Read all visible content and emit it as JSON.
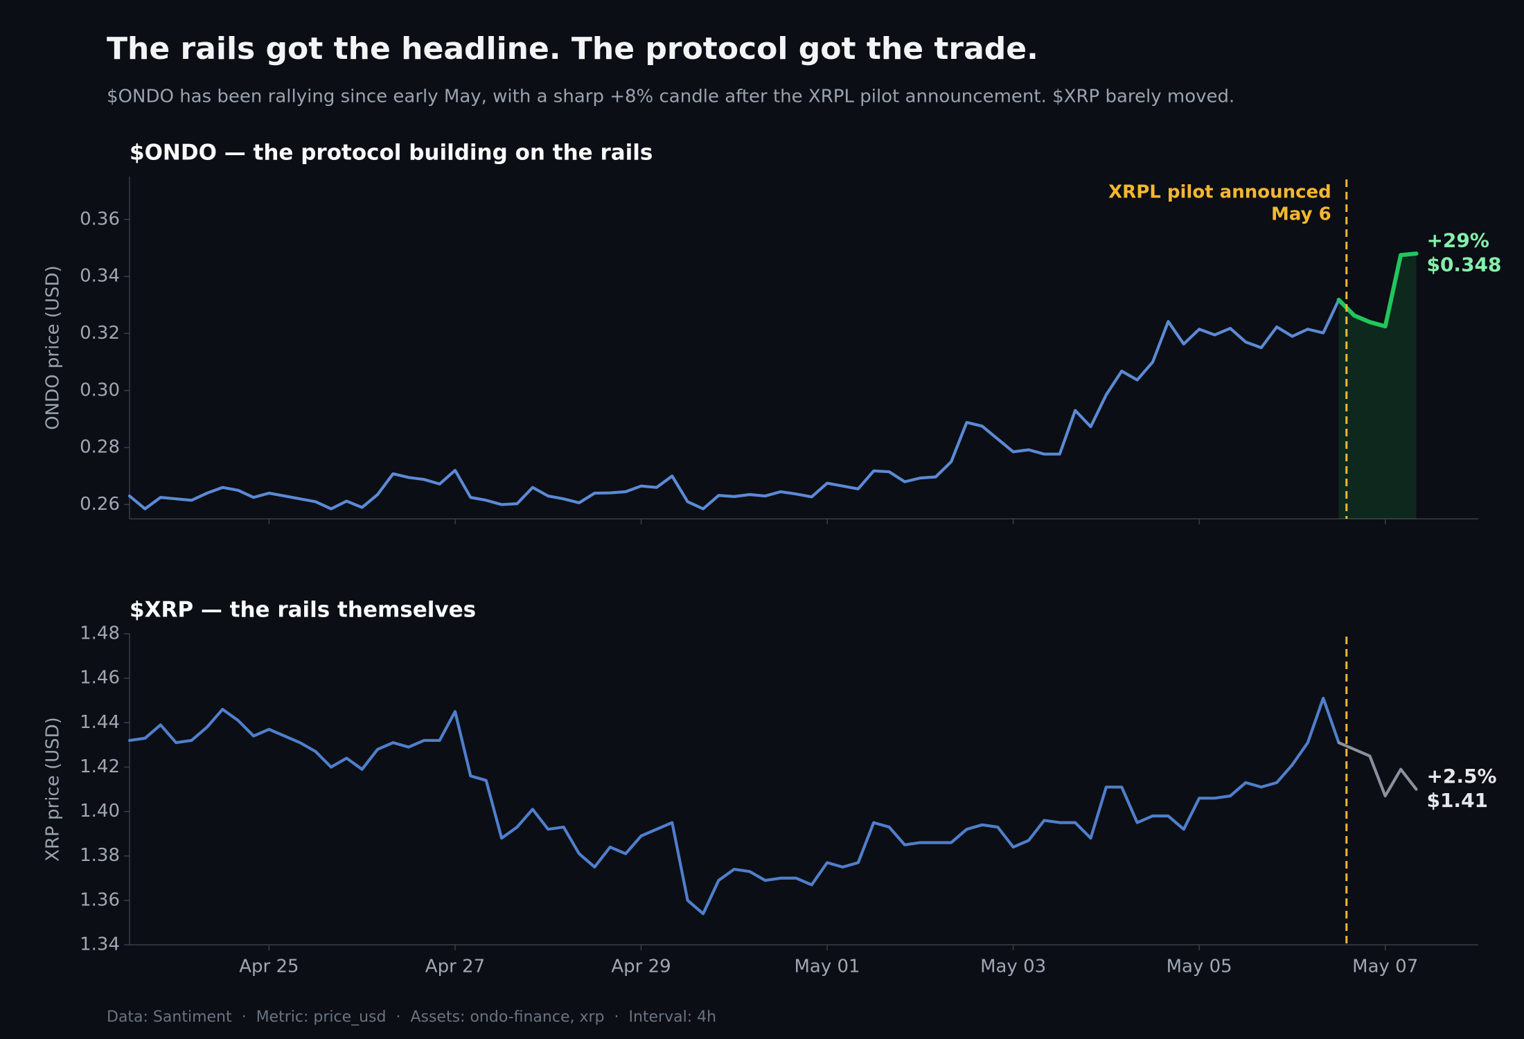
{
  "title": "The rails got the headline. The protocol got the trade.",
  "subtitle": "$ONDO has been rallying since early May, with a sharp +8% candle after the XRPL pilot announcement. $XRP barely moved.",
  "footer": "Data: Santiment  ·  Metric: price_usd  ·  Assets: ondo-finance, xrp  ·  Interval: 4h",
  "chart_data": [
    {
      "type": "line",
      "title": "$ONDO — the protocol building on the rails",
      "y_label": "ONDO price (USD)",
      "x": [
        "04-23 12:00",
        "04-23 16:00",
        "04-23 20:00",
        "04-24 00:00",
        "04-24 04:00",
        "04-24 08:00",
        "04-24 12:00",
        "04-24 16:00",
        "04-24 20:00",
        "04-25 00:00",
        "04-25 04:00",
        "04-25 08:00",
        "04-25 12:00",
        "04-25 16:00",
        "04-25 20:00",
        "04-26 00:00",
        "04-26 04:00",
        "04-26 08:00",
        "04-26 12:00",
        "04-26 16:00",
        "04-26 20:00",
        "04-27 00:00",
        "04-27 04:00",
        "04-27 08:00",
        "04-27 12:00",
        "04-27 16:00",
        "04-27 20:00",
        "04-28 00:00",
        "04-28 04:00",
        "04-28 08:00",
        "04-28 12:00",
        "04-28 16:00",
        "04-28 20:00",
        "04-29 00:00",
        "04-29 04:00",
        "04-29 08:00",
        "04-29 12:00",
        "04-29 16:00",
        "04-29 20:00",
        "04-30 00:00",
        "04-30 04:00",
        "04-30 08:00",
        "04-30 12:00",
        "04-30 16:00",
        "04-30 20:00",
        "05-01 00:00",
        "05-01 04:00",
        "05-01 08:00",
        "05-01 12:00",
        "05-01 16:00",
        "05-01 20:00",
        "05-02 00:00",
        "05-02 04:00",
        "05-02 08:00",
        "05-02 12:00",
        "05-02 16:00",
        "05-02 20:00",
        "05-03 00:00",
        "05-03 04:00",
        "05-03 08:00",
        "05-03 12:00",
        "05-03 16:00",
        "05-03 20:00",
        "05-04 00:00",
        "05-04 04:00",
        "05-04 08:00",
        "05-04 12:00",
        "05-04 16:00",
        "05-04 20:00",
        "05-05 00:00",
        "05-05 04:00",
        "05-05 08:00",
        "05-05 12:00",
        "05-05 16:00",
        "05-05 20:00",
        "05-06 00:00",
        "05-06 04:00",
        "05-06 08:00",
        "05-06 12:00",
        "05-06 16:00",
        "05-06 20:00",
        "05-07 00:00",
        "05-07 04:00",
        "05-07 08:00"
      ],
      "values": [
        0.263,
        0.2585,
        0.2625,
        0.262,
        0.2615,
        0.264,
        0.266,
        0.265,
        0.2625,
        0.264,
        0.263,
        0.262,
        0.261,
        0.2585,
        0.2612,
        0.259,
        0.2635,
        0.2708,
        0.2695,
        0.2688,
        0.2672,
        0.272,
        0.2625,
        0.2615,
        0.26,
        0.2603,
        0.266,
        0.263,
        0.262,
        0.2606,
        0.264,
        0.2641,
        0.2645,
        0.2665,
        0.266,
        0.27,
        0.261,
        0.2585,
        0.2632,
        0.2628,
        0.2635,
        0.263,
        0.2645,
        0.2637,
        0.2627,
        0.2675,
        0.2665,
        0.2655,
        0.2718,
        0.2715,
        0.268,
        0.2693,
        0.2697,
        0.275,
        0.2888,
        0.2875,
        0.283,
        0.2785,
        0.2792,
        0.2777,
        0.2777,
        0.293,
        0.2873,
        0.2985,
        0.3068,
        0.3037,
        0.31,
        0.3242,
        0.3163,
        0.3215,
        0.3195,
        0.3218,
        0.317,
        0.315,
        0.3223,
        0.319,
        0.3215,
        0.3202,
        0.3318,
        0.3263,
        0.324,
        0.3225,
        0.3475,
        0.348
      ],
      "color": "#5b8ad6",
      "highlight_from": "05-06 12:00",
      "highlight_color": "#22c55e",
      "highlight_area": true,
      "xlim": [
        "04-23 12:00",
        "05-08 00:00"
      ],
      "xticks": [
        "04-25",
        "04-27",
        "04-29",
        "05-01",
        "05-03",
        "05-05",
        "05-07"
      ],
      "ylim": [
        0.255,
        0.375
      ],
      "yticks": [
        0.26,
        0.28,
        {
          "value": 0.3,
          "label": "0.30"
        },
        0.32,
        0.34,
        0.36
      ],
      "vline": {
        "x": "05-06 14:00",
        "color": "#f5b731",
        "text": [
          "XRPL pilot announced",
          "May 6"
        ]
      },
      "end_labels": [
        "+29%",
        "$0.348"
      ],
      "end_label_color": "#86efac"
    },
    {
      "type": "line",
      "title": "$XRP — the rails themselves",
      "y_label": "XRP price (USD)",
      "x": [
        "04-23 12:00",
        "04-23 16:00",
        "04-23 20:00",
        "04-24 00:00",
        "04-24 04:00",
        "04-24 08:00",
        "04-24 12:00",
        "04-24 16:00",
        "04-24 20:00",
        "04-25 00:00",
        "04-25 04:00",
        "04-25 08:00",
        "04-25 12:00",
        "04-25 16:00",
        "04-25 20:00",
        "04-26 00:00",
        "04-26 04:00",
        "04-26 08:00",
        "04-26 12:00",
        "04-26 16:00",
        "04-26 20:00",
        "04-27 00:00",
        "04-27 04:00",
        "04-27 08:00",
        "04-27 12:00",
        "04-27 16:00",
        "04-27 20:00",
        "04-28 00:00",
        "04-28 04:00",
        "04-28 08:00",
        "04-28 12:00",
        "04-28 16:00",
        "04-28 20:00",
        "04-29 00:00",
        "04-29 04:00",
        "04-29 08:00",
        "04-29 12:00",
        "04-29 16:00",
        "04-29 20:00",
        "04-30 00:00",
        "04-30 04:00",
        "04-30 08:00",
        "04-30 12:00",
        "04-30 16:00",
        "04-30 20:00",
        "05-01 00:00",
        "05-01 04:00",
        "05-01 08:00",
        "05-01 12:00",
        "05-01 16:00",
        "05-01 20:00",
        "05-02 00:00",
        "05-02 04:00",
        "05-02 08:00",
        "05-02 12:00",
        "05-02 16:00",
        "05-02 20:00",
        "05-03 00:00",
        "05-03 04:00",
        "05-03 08:00",
        "05-03 12:00",
        "05-03 16:00",
        "05-03 20:00",
        "05-04 00:00",
        "05-04 04:00",
        "05-04 08:00",
        "05-04 12:00",
        "05-04 16:00",
        "05-04 20:00",
        "05-05 00:00",
        "05-05 04:00",
        "05-05 08:00",
        "05-05 12:00",
        "05-05 16:00",
        "05-05 20:00",
        "05-06 00:00",
        "05-06 04:00",
        "05-06 08:00",
        "05-06 12:00",
        "05-06 16:00",
        "05-06 20:00",
        "05-07 00:00",
        "05-07 04:00",
        "05-07 08:00"
      ],
      "values": [
        1.432,
        1.433,
        1.439,
        1.431,
        1.432,
        1.438,
        1.446,
        1.441,
        1.434,
        1.437,
        1.434,
        1.431,
        1.427,
        1.42,
        1.424,
        1.419,
        1.428,
        1.431,
        1.429,
        1.432,
        1.432,
        1.445,
        1.416,
        1.414,
        1.388,
        1.393,
        1.401,
        1.392,
        1.393,
        1.381,
        1.375,
        1.384,
        1.381,
        1.389,
        1.392,
        1.395,
        1.36,
        1.354,
        1.369,
        1.374,
        1.373,
        1.369,
        1.37,
        1.37,
        1.367,
        1.377,
        1.375,
        1.377,
        1.395,
        1.393,
        1.385,
        1.386,
        1.386,
        1.386,
        1.392,
        1.394,
        1.393,
        1.384,
        1.387,
        1.396,
        1.395,
        1.395,
        1.388,
        1.411,
        1.411,
        1.395,
        1.398,
        1.398,
        1.392,
        1.406,
        1.406,
        1.407,
        1.413,
        1.411,
        1.413,
        1.421,
        1.431,
        1.451,
        1.431,
        1.428,
        1.425,
        1.407,
        1.419,
        1.41
      ],
      "color": "#4f7fcc",
      "highlight_from": "05-06 12:00",
      "highlight_color": "#8b919c",
      "highlight_area": false,
      "xlim": [
        "04-23 12:00",
        "05-08 00:00"
      ],
      "xticks": [
        {
          "value": "04-25",
          "label": "Apr 25"
        },
        {
          "value": "04-27",
          "label": "Apr 27"
        },
        {
          "value": "04-29",
          "label": "Apr 29"
        },
        {
          "value": "05-01",
          "label": "May 01"
        },
        {
          "value": "05-03",
          "label": "May 03"
        },
        {
          "value": "05-05",
          "label": "May 05"
        },
        {
          "value": "05-07",
          "label": "May 07"
        }
      ],
      "ylim": [
        1.34,
        1.48
      ],
      "yticks": [
        1.34,
        1.36,
        1.38,
        {
          "value": 1.4,
          "label": "1.40"
        },
        1.42,
        1.44,
        1.46,
        1.48
      ],
      "vline": {
        "x": "05-06 14:00",
        "color": "#f5b731"
      },
      "end_labels": [
        "+2.5%",
        "$1.41"
      ],
      "end_label_color": "#e5e7eb"
    }
  ]
}
